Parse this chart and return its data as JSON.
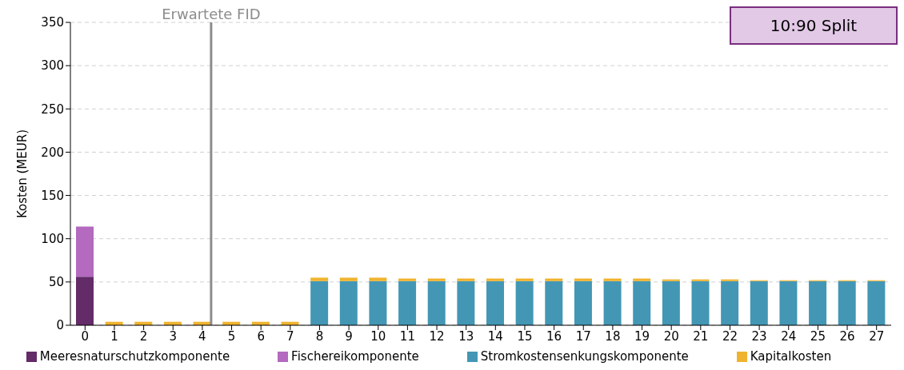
{
  "chart_data": {
    "type": "bar",
    "stacked": true,
    "ylabel": "Kosten (MEUR)",
    "x": [
      0,
      1,
      2,
      3,
      4,
      5,
      6,
      7,
      8,
      9,
      10,
      11,
      12,
      13,
      14,
      15,
      16,
      17,
      18,
      19,
      20,
      21,
      22,
      23,
      24,
      25,
      26,
      27
    ],
    "xlim": [
      -0.5,
      27.5
    ],
    "xticks": [
      0,
      1,
      2,
      3,
      4,
      5,
      6,
      7,
      8,
      9,
      10,
      11,
      12,
      13,
      14,
      15,
      16,
      17,
      18,
      19,
      20,
      21,
      22,
      23,
      24,
      25,
      26,
      27
    ],
    "ylim": [
      0,
      350
    ],
    "yticks": [
      0,
      50,
      100,
      150,
      200,
      250,
      300,
      350
    ],
    "grid": "y",
    "legend": "bottom",
    "series": [
      {
        "name": "Meeresnaturschutzkomponente",
        "color": "#632b68",
        "values": [
          56,
          0,
          0,
          0,
          0,
          0,
          0,
          0,
          0,
          0,
          0,
          0,
          0,
          0,
          0,
          0,
          0,
          0,
          0,
          0,
          0,
          0,
          0,
          0,
          0,
          0,
          0,
          0
        ]
      },
      {
        "name": "Fischereikomponente",
        "color": "#b36abf",
        "values": [
          58,
          0,
          0,
          0,
          0,
          0,
          0,
          0,
          0,
          0,
          0,
          0,
          0,
          0,
          0,
          0,
          0,
          0,
          0,
          0,
          0,
          0,
          0,
          0,
          0,
          0,
          0,
          0
        ]
      },
      {
        "name": "Stromkostensenkungskomponente",
        "color": "#4397b4",
        "values": [
          0,
          0,
          0,
          0,
          0,
          0,
          0,
          0,
          51,
          51,
          51,
          51,
          51,
          51,
          51,
          51,
          51,
          51,
          51,
          51,
          51,
          51,
          51,
          51,
          51,
          51,
          51,
          51
        ]
      },
      {
        "name": "Kapitalkosten",
        "color": "#f0b32e",
        "values": [
          0,
          4,
          4,
          4,
          4,
          4,
          4,
          4,
          4,
          4,
          4,
          3,
          3,
          3,
          3,
          3,
          3,
          3,
          3,
          3,
          2,
          2,
          2,
          1,
          1,
          1,
          1,
          1
        ]
      }
    ],
    "ref_lines": [
      {
        "axis": "x",
        "value": 4.3,
        "label": "Erwartete FID",
        "color": "#8c8c8c"
      }
    ],
    "annotations": [
      "10:90 Split"
    ]
  }
}
